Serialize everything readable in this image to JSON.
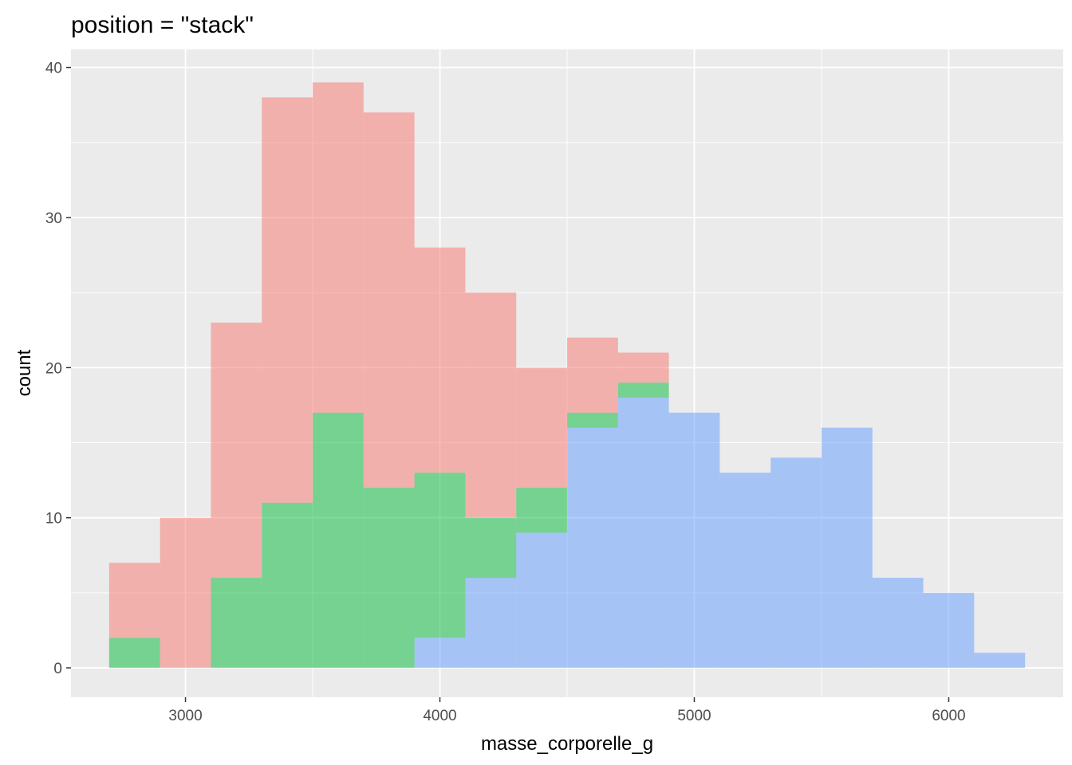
{
  "chart_data": {
    "type": "bar",
    "title": "position = \"stack\"",
    "xlabel": "masse_corporelle_g",
    "ylabel": "count",
    "xlim": [
      2550,
      6450
    ],
    "ylim": [
      -1.96,
      41.2
    ],
    "xticks": [
      3000,
      4000,
      5000,
      6000
    ],
    "yticks": [
      0,
      10,
      20,
      30,
      40
    ],
    "xtick_labels": [
      "3000",
      "4000",
      "5000",
      "6000"
    ],
    "ytick_labels": [
      "0",
      "10",
      "20",
      "30",
      "40"
    ],
    "grid": true,
    "legend": "none",
    "bin_width": 200,
    "bin_centers": [
      2800,
      3000,
      3200,
      3400,
      3600,
      3800,
      4000,
      4200,
      4400,
      4600,
      4800,
      5000,
      5200,
      5400,
      5600,
      5800,
      6000,
      6200
    ],
    "series": [
      {
        "color": "#7cae00",
        "fill": "#F8766D",
        "values": [
          5,
          10,
          17,
          27,
          22,
          25,
          15,
          15,
          8,
          5,
          2,
          0,
          0,
          0,
          0,
          0,
          0,
          0
        ]
      },
      {
        "fill": "#00BA38",
        "values": [
          2,
          0,
          6,
          11,
          17,
          12,
          11,
          4,
          3,
          1,
          1,
          0,
          0,
          0,
          0,
          0,
          0,
          0
        ]
      },
      {
        "fill": "#619CFF",
        "values": [
          0,
          0,
          0,
          0,
          0,
          0,
          2,
          6,
          9,
          16,
          18,
          17,
          13,
          14,
          16,
          6,
          5,
          1
        ]
      }
    ]
  }
}
